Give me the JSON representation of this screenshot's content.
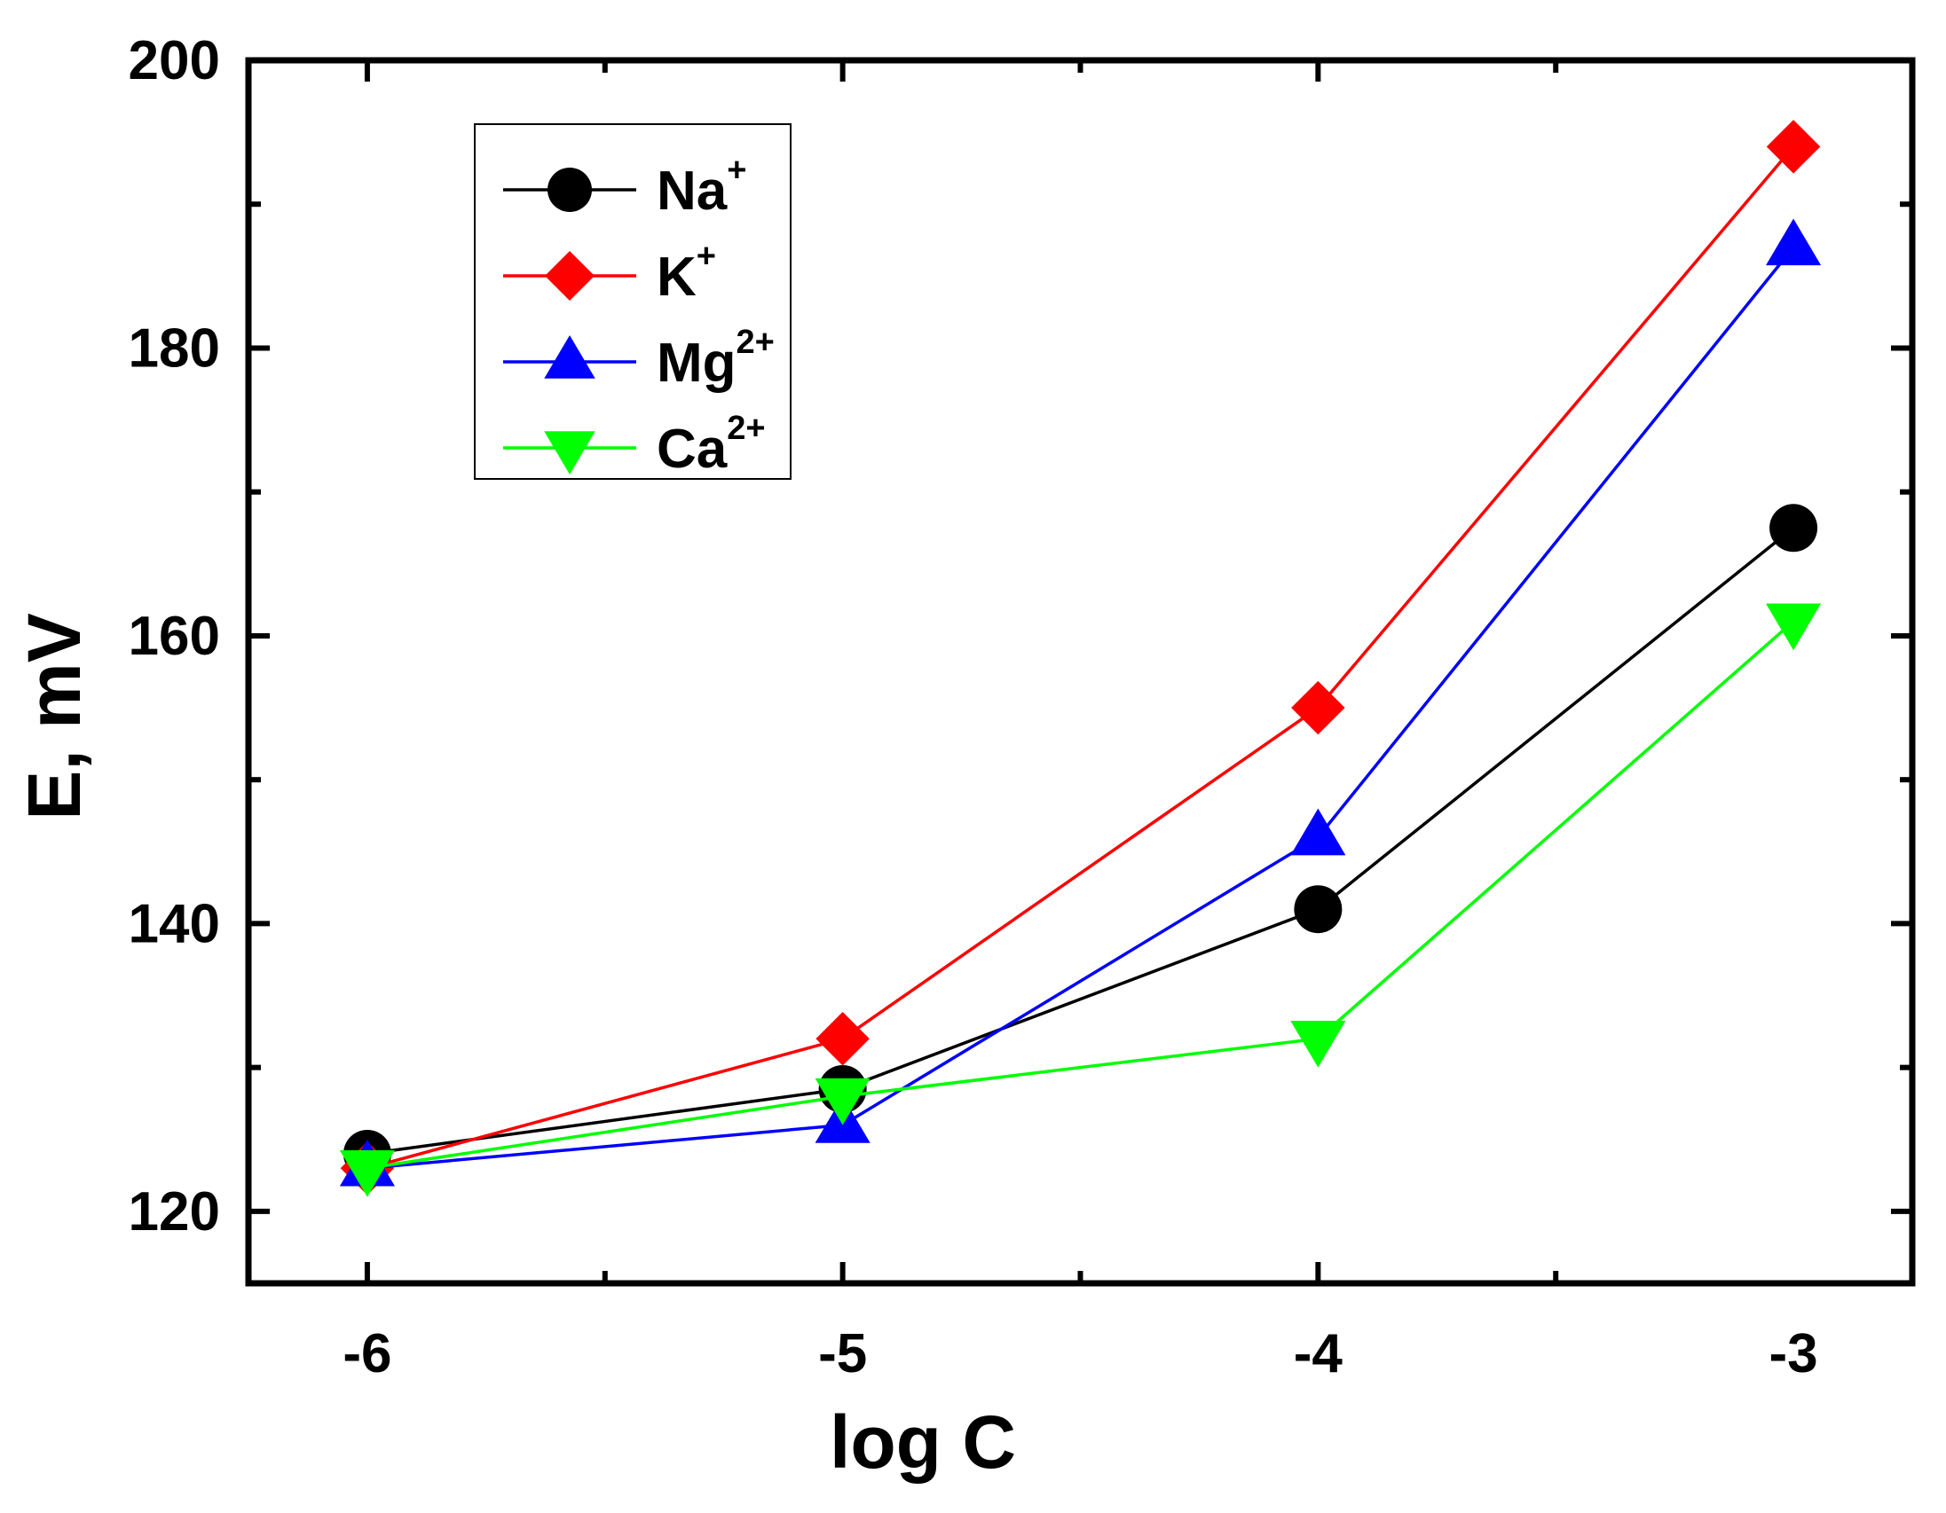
{
  "chart_data": {
    "type": "line",
    "title": "",
    "xlabel": "log C",
    "ylabel": "E, mV",
    "xlim": [
      -6.25,
      -2.75
    ],
    "ylim": [
      115,
      200
    ],
    "x": [
      -6,
      -5,
      -4,
      -3
    ],
    "x_tick_labels": [
      "-6",
      "-5",
      "-4",
      "-3"
    ],
    "y_tick_labels": [
      "120",
      "140",
      "160",
      "180",
      "200"
    ],
    "grid": false,
    "legend_position": "top-left",
    "series": [
      {
        "name": "Na",
        "superscript": "+",
        "values": [
          124,
          128.5,
          141,
          167.5
        ],
        "color": "#000000",
        "marker": "circle"
      },
      {
        "name": "K",
        "superscript": "+",
        "values": [
          123,
          132,
          155,
          194
        ],
        "color": "#ff0000",
        "marker": "diamond"
      },
      {
        "name": "Mg",
        "superscript": "2+",
        "values": [
          123,
          126,
          146,
          187
        ],
        "color": "#0000ff",
        "marker": "triangle-up"
      },
      {
        "name": "Ca",
        "superscript": "2+",
        "values": [
          123,
          128,
          132,
          161
        ],
        "color": "#00ff00",
        "marker": "triangle-down"
      }
    ]
  }
}
